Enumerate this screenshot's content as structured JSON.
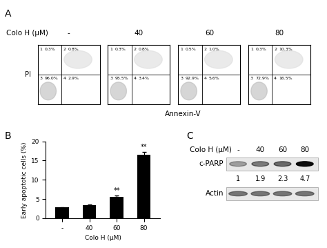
{
  "panel_a": {
    "label": "A",
    "treatment_label": "Colo H (μM)",
    "conditions": [
      "-",
      "40",
      "60",
      "80"
    ],
    "y_label": "PI",
    "x_label": "Annexin-V",
    "quadrant_names": [
      "1",
      "2",
      "3",
      "4"
    ],
    "quadrant_values": [
      [
        "0.3%",
        "0.8%",
        "96.0%",
        "2.9%"
      ],
      [
        "0.3%",
        "0.8%",
        "95.5%",
        "3.4%"
      ],
      [
        "0.5%",
        "1.0%",
        "92.9%",
        "5.6%"
      ],
      [
        "0.3%",
        "10.3%",
        "72.9%",
        "16.5%"
      ]
    ]
  },
  "chart_data": [
    {
      "type": "bar",
      "title": "B",
      "categories": [
        "-",
        "40",
        "60",
        "80"
      ],
      "values": [
        2.8,
        3.4,
        5.6,
        16.5
      ],
      "errors": [
        0.1,
        0.2,
        0.3,
        0.8
      ],
      "annotations": [
        null,
        null,
        "**",
        "**"
      ],
      "color": "#000000",
      "x_label": "Colo H (μM)",
      "y_label": "Early apoptotic cells (%)",
      "ylim": [
        0,
        20
      ],
      "yticks": [
        0,
        5,
        10,
        15,
        20
      ],
      "grid": false
    }
  ],
  "panel_c": {
    "label": "C",
    "treatment_label": "Colo H (μM)",
    "conditions": [
      "-",
      "40",
      "60",
      "80"
    ],
    "rows": [
      "c-PARP",
      "Actin"
    ],
    "fold_change": [
      1,
      1.9,
      2.3,
      4.7
    ]
  }
}
